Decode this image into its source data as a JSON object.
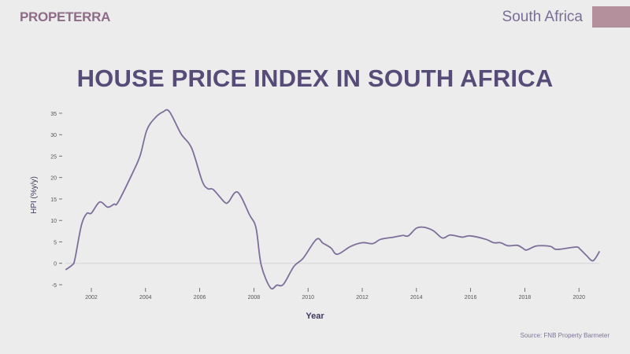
{
  "header": {
    "logo": "PROPETERRA",
    "region": "South Africa"
  },
  "colors": {
    "line": "#7d6f99",
    "title": "#574c78",
    "badge": "#b48f9c",
    "zero_line": "#d8d8d8"
  },
  "chart_data": {
    "type": "line",
    "title": "HOUSE PRICE INDEX IN SOUTH AFRICA",
    "xlabel": "Year",
    "ylabel": "HPI (%y/y)",
    "source": "Source: FNB Property Barmeter",
    "xlim": [
      2001.05,
      2020.76
    ],
    "ylim": [
      -5,
      35
    ],
    "xticks": [
      "2002",
      "2004",
      "2006",
      "2008",
      "2010",
      "2012",
      "2014",
      "2016",
      "2018",
      "2020"
    ],
    "yticks": [
      "35",
      "30",
      "25",
      "20",
      "15",
      "10",
      "5",
      "0",
      "-5"
    ],
    "grid": false,
    "series": [
      {
        "name": "HPI",
        "x": [
          2001.05,
          2001.29,
          2001.39,
          2001.63,
          2001.83,
          2002.0,
          2002.31,
          2002.6,
          2002.84,
          2002.99,
          2003.57,
          2003.81,
          2004.05,
          2004.35,
          2004.64,
          2004.88,
          2005.31,
          2005.7,
          2006.09,
          2006.3,
          2006.5,
          2006.91,
          2007.06,
          2007.4,
          2007.84,
          2008.08,
          2008.27,
          2008.61,
          2008.85,
          2009.09,
          2009.48,
          2009.82,
          2010.31,
          2010.55,
          2010.84,
          2011.08,
          2011.56,
          2012.0,
          2012.39,
          2012.68,
          2013.16,
          2013.5,
          2013.7,
          2014.0,
          2014.28,
          2014.62,
          2014.96,
          2015.25,
          2015.69,
          2015.98,
          2016.56,
          2016.85,
          2017.1,
          2017.38,
          2017.72,
          2017.91,
          2018.06,
          2018.4,
          2018.73,
          2018.97,
          2019.12,
          2019.32,
          2019.9,
          2020.04,
          2020.28,
          2020.52,
          2020.76
        ],
        "values": [
          -1.5,
          -0.4,
          0.9,
          8.8,
          11.6,
          11.7,
          14.3,
          13.1,
          13.8,
          14.3,
          21.7,
          25.3,
          31.1,
          33.9,
          35.3,
          35.4,
          30.2,
          26.9,
          19.2,
          17.4,
          17.2,
          14.3,
          14.3,
          16.6,
          11.3,
          8.2,
          -0.4,
          -5.7,
          -5.1,
          -4.9,
          -0.7,
          1.2,
          5.6,
          4.7,
          3.6,
          2.1,
          3.9,
          4.8,
          4.6,
          5.6,
          6.1,
          6.5,
          6.4,
          8.2,
          8.4,
          7.6,
          5.9,
          6.6,
          6.1,
          6.4,
          5.6,
          4.8,
          4.8,
          4.1,
          4.2,
          3.6,
          3.1,
          4.0,
          4.1,
          3.9,
          3.3,
          3.3,
          3.8,
          3.3,
          1.8,
          0.6,
          2.8
        ]
      }
    ]
  }
}
